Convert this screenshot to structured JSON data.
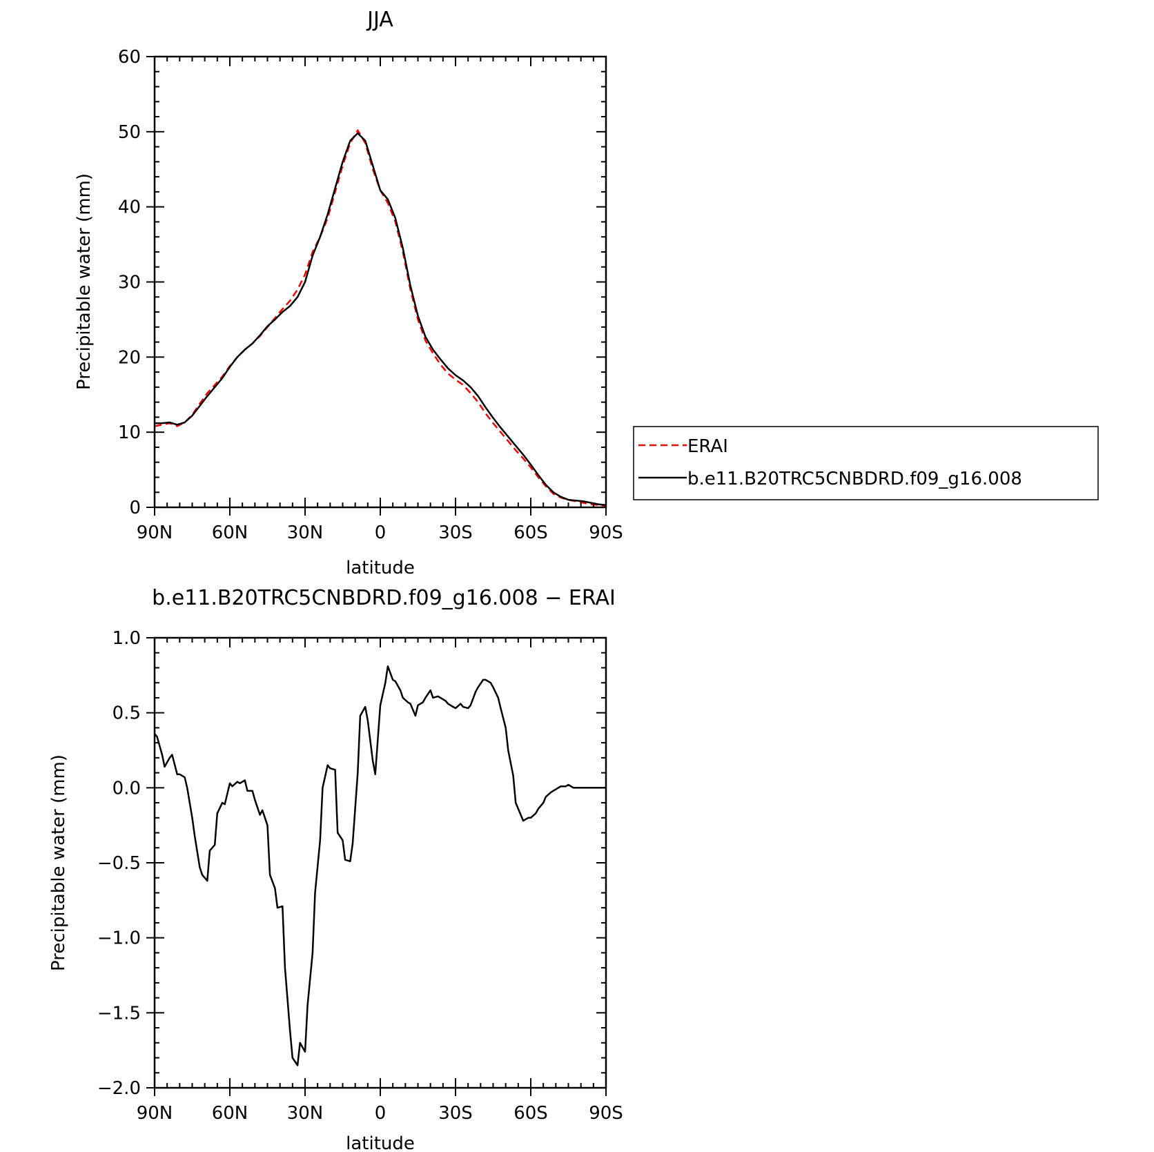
{
  "chart_data": [
    {
      "type": "line",
      "title": "JJA",
      "xlabel": "latitude",
      "ylabel": "Precipitable water (mm)",
      "xlim": [
        90,
        -90
      ],
      "ylim": [
        0,
        60
      ],
      "xticks": [
        {
          "value": 90,
          "label": "90N"
        },
        {
          "value": 60,
          "label": "60N"
        },
        {
          "value": 30,
          "label": "30N"
        },
        {
          "value": 0,
          "label": "0"
        },
        {
          "value": -30,
          "label": "30S"
        },
        {
          "value": -60,
          "label": "60S"
        },
        {
          "value": -90,
          "label": "90S"
        }
      ],
      "yticks": [
        {
          "value": 0,
          "label": "0"
        },
        {
          "value": 10,
          "label": "10"
        },
        {
          "value": 20,
          "label": "20"
        },
        {
          "value": 30,
          "label": "30"
        },
        {
          "value": 40,
          "label": "40"
        },
        {
          "value": 50,
          "label": "50"
        },
        {
          "value": 60,
          "label": "60"
        }
      ],
      "legend_position": "right",
      "series": [
        {
          "name": "ERAI",
          "color": "#ff0000",
          "dash": "dashed",
          "x": [
            90,
            87,
            84,
            81,
            78,
            75,
            72,
            69,
            66,
            63,
            60,
            57,
            54,
            51,
            48,
            45,
            42,
            39,
            36,
            33,
            30,
            27,
            24,
            21,
            18,
            15,
            12,
            9,
            6,
            3,
            0,
            -3,
            -6,
            -9,
            -12,
            -15,
            -18,
            -21,
            -24,
            -27,
            -30,
            -33,
            -36,
            -39,
            -42,
            -45,
            -48,
            -51,
            -54,
            -57,
            -60,
            -63,
            -66,
            -69,
            -72,
            -75,
            -78,
            -81,
            -84,
            -87,
            -90
          ],
          "y": [
            10.8,
            11.0,
            11.2,
            10.8,
            11.3,
            12.3,
            13.8,
            15.2,
            16.3,
            17.4,
            18.8,
            20.0,
            21.0,
            21.8,
            22.8,
            24.0,
            25.2,
            26.4,
            27.5,
            29.0,
            31.0,
            34.0,
            36.0,
            38.5,
            42.0,
            45.5,
            48.5,
            50.2,
            48.5,
            45.0,
            42.2,
            40.5,
            38.0,
            34.0,
            29.0,
            25.0,
            22.2,
            20.5,
            19.0,
            17.8,
            17.0,
            16.3,
            15.2,
            14.0,
            12.5,
            11.2,
            10.0,
            8.8,
            7.6,
            6.5,
            5.3,
            4.0,
            2.8,
            1.8,
            1.3,
            1.0,
            0.8,
            0.6,
            0.4,
            0.3,
            0.2
          ]
        },
        {
          "name": "b.e11.B20TRC5CNBDRD.f09_g16.008",
          "color": "#000000",
          "dash": "solid",
          "x": [
            90,
            87,
            84,
            81,
            78,
            75,
            72,
            69,
            66,
            63,
            60,
            57,
            54,
            51,
            48,
            45,
            42,
            39,
            36,
            33,
            30,
            27,
            24,
            21,
            18,
            15,
            12,
            9,
            6,
            3,
            0,
            -3,
            -6,
            -9,
            -12,
            -15,
            -18,
            -21,
            -24,
            -27,
            -30,
            -33,
            -36,
            -39,
            -42,
            -45,
            -48,
            -51,
            -54,
            -57,
            -60,
            -63,
            -66,
            -69,
            -72,
            -75,
            -78,
            -81,
            -84,
            -87,
            -90
          ],
          "y": [
            11.2,
            11.2,
            11.3,
            11.0,
            11.3,
            12.2,
            13.5,
            14.8,
            16.0,
            17.2,
            18.7,
            20.0,
            21.0,
            21.8,
            22.9,
            24.1,
            25.0,
            26.0,
            26.8,
            28.0,
            30.0,
            33.5,
            36.0,
            39.0,
            42.5,
            46.0,
            48.8,
            49.8,
            48.8,
            45.5,
            42.2,
            41.0,
            38.5,
            34.5,
            29.5,
            25.5,
            22.7,
            21.0,
            19.7,
            18.5,
            17.6,
            16.9,
            16.0,
            14.8,
            13.3,
            11.9,
            10.6,
            9.4,
            8.2,
            7.0,
            5.7,
            4.3,
            3.0,
            2.0,
            1.4,
            1.0,
            0.9,
            0.8,
            0.6,
            0.4,
            0.3
          ]
        }
      ]
    },
    {
      "type": "line",
      "title": "b.e11.B20TRC5CNBDRD.f09_g16.008 − ERAI",
      "xlabel": "latitude",
      "ylabel": "Precipitable water (mm)",
      "xlim": [
        90,
        -90
      ],
      "ylim": [
        -2.0,
        1.0
      ],
      "xticks": [
        {
          "value": 90,
          "label": "90N"
        },
        {
          "value": 60,
          "label": "60N"
        },
        {
          "value": 30,
          "label": "30N"
        },
        {
          "value": 0,
          "label": "0"
        },
        {
          "value": -30,
          "label": "30S"
        },
        {
          "value": -60,
          "label": "60S"
        },
        {
          "value": -90,
          "label": "90S"
        }
      ],
      "yticks": [
        {
          "value": 1.0,
          "label": "1.0"
        },
        {
          "value": 0.5,
          "label": "0.5"
        },
        {
          "value": 0.0,
          "label": "0.0"
        },
        {
          "value": -0.5,
          "label": "−0.5"
        },
        {
          "value": -1.0,
          "label": "−1.0"
        },
        {
          "value": -1.5,
          "label": "−1.5"
        },
        {
          "value": -2.0,
          "label": "−2.0"
        }
      ],
      "series": [
        {
          "color": "#000000",
          "dash": "solid",
          "x": [
            90,
            89,
            87,
            86,
            84,
            83,
            81,
            80,
            78,
            77,
            75,
            74,
            72,
            71,
            69,
            68,
            66,
            65,
            63,
            62,
            60,
            59,
            57,
            56,
            54,
            53,
            51,
            50,
            48,
            47,
            45,
            44,
            42,
            41,
            39,
            38,
            36,
            35,
            33,
            32,
            30,
            29,
            27,
            26,
            24,
            23,
            21,
            20,
            18,
            17,
            15,
            14,
            12,
            11,
            9,
            8,
            6,
            5,
            3,
            2,
            0,
            -2,
            -3,
            -5,
            -6,
            -8,
            -9,
            -11,
            -12,
            -14,
            -15,
            -17,
            -18,
            -20,
            -21,
            -23,
            -24,
            -26,
            -27,
            -29,
            -30,
            -32,
            -33,
            -35,
            -36,
            -38,
            -39,
            -41,
            -42,
            -44,
            -45,
            -47,
            -48,
            -50,
            -51,
            -53,
            -54,
            -56,
            -57,
            -59,
            -60,
            -62,
            -63,
            -65,
            -66,
            -68,
            -69,
            -71,
            -72,
            -74,
            -75,
            -77,
            -78,
            -80,
            -81,
            -83,
            -84,
            -86,
            -87,
            -89,
            -90
          ],
          "y": [
            0.36,
            0.34,
            0.22,
            0.14,
            0.2,
            0.22,
            0.09,
            0.09,
            0.07,
            0.0,
            -0.2,
            -0.32,
            -0.53,
            -0.58,
            -0.62,
            -0.42,
            -0.38,
            -0.17,
            -0.1,
            -0.11,
            0.03,
            0.01,
            0.04,
            0.03,
            0.05,
            -0.02,
            -0.02,
            -0.08,
            -0.18,
            -0.15,
            -0.25,
            -0.58,
            -0.67,
            -0.8,
            -0.79,
            -1.2,
            -1.62,
            -1.8,
            -1.85,
            -1.7,
            -1.76,
            -1.45,
            -1.1,
            -0.7,
            -0.35,
            0.0,
            0.15,
            0.13,
            0.12,
            -0.3,
            -0.35,
            -0.48,
            -0.49,
            -0.37,
            0.1,
            0.48,
            0.54,
            0.45,
            0.18,
            0.09,
            0.55,
            0.7,
            0.81,
            0.72,
            0.71,
            0.65,
            0.6,
            0.57,
            0.56,
            0.48,
            0.55,
            0.57,
            0.6,
            0.65,
            0.6,
            0.61,
            0.6,
            0.58,
            0.56,
            0.54,
            0.53,
            0.56,
            0.54,
            0.53,
            0.55,
            0.64,
            0.67,
            0.72,
            0.72,
            0.7,
            0.67,
            0.6,
            0.53,
            0.4,
            0.25,
            0.08,
            -0.1,
            -0.18,
            -0.22,
            -0.2,
            -0.2,
            -0.17,
            -0.14,
            -0.1,
            -0.06,
            -0.03,
            -0.02,
            0.0,
            0.01,
            0.01,
            0.02,
            0.0,
            0.0,
            0.0,
            0.0,
            0.0,
            0.0,
            0.0,
            0.0,
            0.0,
            0.0
          ]
        }
      ]
    }
  ]
}
